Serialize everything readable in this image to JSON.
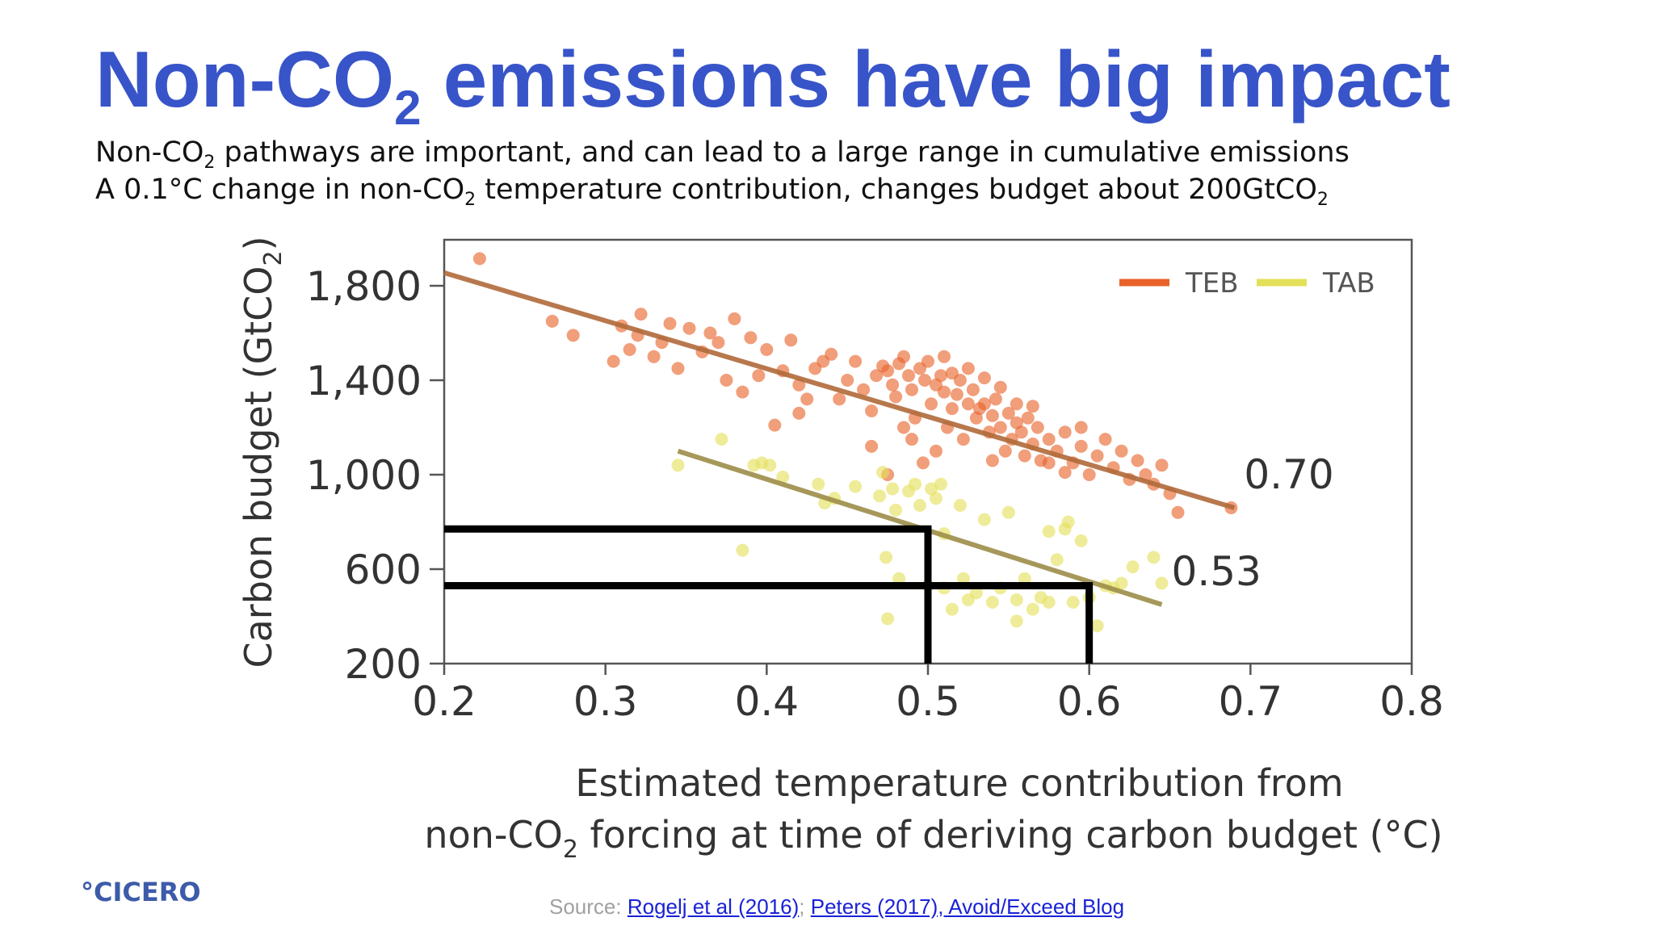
{
  "slide": {
    "title_main": "Non-CO",
    "title_sub": "2",
    "title_rest": " emissions have big impact",
    "bullet1": {
      "a": "Non-CO",
      "sub": "2",
      "b": " pathways are important, and can lead to a large range in cumulative emissions"
    },
    "bullet2": {
      "a": "A 0.1°C change in non-CO",
      "sub": "2",
      "b": " temperature contribution, changes budget about 200GtCO",
      "sub2": "2"
    },
    "logo": "°CICERO",
    "source_label": "Source: ",
    "source_link1": "Rogelj et al (2016)",
    "source_sep": "; ",
    "source_link2": "Peters (2017), Avoid/Exceed Blog"
  },
  "colors": {
    "title": "#3854c9",
    "teb": "#e8622a",
    "tab": "#e3e05a",
    "teb_line": "#b0693a",
    "tab_line": "#9c8d48"
  },
  "chart_data": {
    "type": "scatter",
    "xlabel_line1": "Estimated temperature contribution from",
    "xlabel_line2_a": "non-CO",
    "xlabel_line2_sub": "2",
    "xlabel_line2_b": " forcing at time of deriving carbon budget (°C)",
    "ylabel_a": "Carbon budget (GtCO",
    "ylabel_sub": "2",
    "ylabel_b": ")",
    "xlim": [
      0.2,
      0.8
    ],
    "ylim": [
      200,
      1950
    ],
    "xticks": [
      0.2,
      0.3,
      0.4,
      0.5,
      0.6,
      0.7,
      0.8
    ],
    "xtick_labels": [
      "0.2",
      "0.3",
      "0.4",
      "0.5",
      "0.6",
      "0.7",
      "0.8"
    ],
    "yticks": [
      200,
      600,
      1000,
      1400,
      1800
    ],
    "ytick_labels": [
      "200",
      "600",
      "1,000",
      "1,400",
      "1,800"
    ],
    "legend": [
      {
        "name": "TEB",
        "color": "#e8622a"
      },
      {
        "name": "TAB",
        "color": "#e3e05a"
      }
    ],
    "legend_position": "top-right",
    "grid": false,
    "trend_lines": [
      {
        "series": "TEB",
        "from": [
          0.2,
          1855
        ],
        "to": [
          0.69,
          860
        ],
        "label": "0.70"
      },
      {
        "series": "TAB",
        "from": [
          0.345,
          1100
        ],
        "to": [
          0.645,
          450
        ],
        "label": "0.53"
      }
    ],
    "reference_lines": [
      {
        "x": 0.5,
        "y": 770
      },
      {
        "x": 0.6,
        "y": 530
      }
    ],
    "series": [
      {
        "name": "TEB",
        "color": "#e8622a",
        "points": [
          [
            0.222,
            1915
          ],
          [
            0.267,
            1650
          ],
          [
            0.28,
            1590
          ],
          [
            0.305,
            1480
          ],
          [
            0.31,
            1630
          ],
          [
            0.315,
            1530
          ],
          [
            0.32,
            1590
          ],
          [
            0.322,
            1680
          ],
          [
            0.33,
            1500
          ],
          [
            0.335,
            1560
          ],
          [
            0.34,
            1640
          ],
          [
            0.345,
            1450
          ],
          [
            0.352,
            1620
          ],
          [
            0.36,
            1520
          ],
          [
            0.365,
            1600
          ],
          [
            0.37,
            1560
          ],
          [
            0.375,
            1400
          ],
          [
            0.38,
            1660
          ],
          [
            0.385,
            1350
          ],
          [
            0.39,
            1580
          ],
          [
            0.395,
            1420
          ],
          [
            0.4,
            1530
          ],
          [
            0.405,
            1210
          ],
          [
            0.41,
            1440
          ],
          [
            0.415,
            1570
          ],
          [
            0.42,
            1380
          ],
          [
            0.425,
            1320
          ],
          [
            0.43,
            1450
          ],
          [
            0.435,
            1480
          ],
          [
            0.44,
            1510
          ],
          [
            0.445,
            1320
          ],
          [
            0.45,
            1400
          ],
          [
            0.455,
            1480
          ],
          [
            0.46,
            1360
          ],
          [
            0.465,
            1120
          ],
          [
            0.468,
            1420
          ],
          [
            0.472,
            1460
          ],
          [
            0.475,
            1440
          ],
          [
            0.478,
            1380
          ],
          [
            0.48,
            1330
          ],
          [
            0.482,
            1470
          ],
          [
            0.485,
            1500
          ],
          [
            0.488,
            1420
          ],
          [
            0.49,
            1360
          ],
          [
            0.492,
            1240
          ],
          [
            0.495,
            1450
          ],
          [
            0.498,
            1400
          ],
          [
            0.5,
            1480
          ],
          [
            0.502,
            1300
          ],
          [
            0.505,
            1380
          ],
          [
            0.508,
            1420
          ],
          [
            0.51,
            1350
          ],
          [
            0.512,
            1200
          ],
          [
            0.515,
            1280
          ],
          [
            0.518,
            1340
          ],
          [
            0.52,
            1400
          ],
          [
            0.522,
            1150
          ],
          [
            0.525,
            1300
          ],
          [
            0.528,
            1360
          ],
          [
            0.53,
            1240
          ],
          [
            0.532,
            1280
          ],
          [
            0.535,
            1300
          ],
          [
            0.538,
            1180
          ],
          [
            0.54,
            1250
          ],
          [
            0.542,
            1320
          ],
          [
            0.545,
            1200
          ],
          [
            0.548,
            1100
          ],
          [
            0.55,
            1260
          ],
          [
            0.552,
            1150
          ],
          [
            0.555,
            1220
          ],
          [
            0.558,
            1180
          ],
          [
            0.56,
            1080
          ],
          [
            0.562,
            1240
          ],
          [
            0.565,
            1130
          ],
          [
            0.568,
            1200
          ],
          [
            0.57,
            1060
          ],
          [
            0.575,
            1150
          ],
          [
            0.58,
            1100
          ],
          [
            0.585,
            1180
          ],
          [
            0.59,
            1050
          ],
          [
            0.595,
            1120
          ],
          [
            0.6,
            1000
          ],
          [
            0.605,
            1080
          ],
          [
            0.61,
            1150
          ],
          [
            0.615,
            1030
          ],
          [
            0.62,
            1100
          ],
          [
            0.625,
            980
          ],
          [
            0.63,
            1060
          ],
          [
            0.635,
            1000
          ],
          [
            0.64,
            960
          ],
          [
            0.645,
            1040
          ],
          [
            0.65,
            920
          ],
          [
            0.655,
            840
          ],
          [
            0.688,
            860
          ],
          [
            0.42,
            1260
          ],
          [
            0.475,
            1000
          ],
          [
            0.485,
            1200
          ],
          [
            0.49,
            1150
          ],
          [
            0.497,
            1050
          ],
          [
            0.505,
            1100
          ],
          [
            0.51,
            1500
          ],
          [
            0.515,
            1430
          ],
          [
            0.525,
            1450
          ],
          [
            0.535,
            1410
          ],
          [
            0.54,
            1060
          ],
          [
            0.545,
            1370
          ],
          [
            0.555,
            1300
          ],
          [
            0.565,
            1290
          ],
          [
            0.575,
            1050
          ],
          [
            0.585,
            1010
          ],
          [
            0.595,
            1200
          ],
          [
            0.465,
            1270
          ]
        ]
      },
      {
        "name": "TAB",
        "color": "#e3e05a",
        "points": [
          [
            0.345,
            1040
          ],
          [
            0.372,
            1150
          ],
          [
            0.385,
            680
          ],
          [
            0.392,
            1040
          ],
          [
            0.397,
            1050
          ],
          [
            0.402,
            1040
          ],
          [
            0.41,
            990
          ],
          [
            0.432,
            960
          ],
          [
            0.436,
            880
          ],
          [
            0.442,
            900
          ],
          [
            0.455,
            950
          ],
          [
            0.47,
            910
          ],
          [
            0.472,
            1010
          ],
          [
            0.474,
            650
          ],
          [
            0.475,
            390
          ],
          [
            0.478,
            940
          ],
          [
            0.48,
            850
          ],
          [
            0.482,
            560
          ],
          [
            0.488,
            930
          ],
          [
            0.492,
            960
          ],
          [
            0.495,
            870
          ],
          [
            0.5,
            530
          ],
          [
            0.502,
            940
          ],
          [
            0.505,
            900
          ],
          [
            0.508,
            960
          ],
          [
            0.51,
            520
          ],
          [
            0.515,
            430
          ],
          [
            0.52,
            870
          ],
          [
            0.522,
            560
          ],
          [
            0.525,
            470
          ],
          [
            0.53,
            500
          ],
          [
            0.535,
            810
          ],
          [
            0.54,
            460
          ],
          [
            0.545,
            520
          ],
          [
            0.55,
            840
          ],
          [
            0.555,
            470
          ],
          [
            0.56,
            560
          ],
          [
            0.565,
            430
          ],
          [
            0.57,
            480
          ],
          [
            0.575,
            460
          ],
          [
            0.58,
            640
          ],
          [
            0.585,
            770
          ],
          [
            0.59,
            460
          ],
          [
            0.595,
            720
          ],
          [
            0.6,
            480
          ],
          [
            0.605,
            360
          ],
          [
            0.61,
            530
          ],
          [
            0.62,
            540
          ],
          [
            0.627,
            610
          ],
          [
            0.64,
            650
          ],
          [
            0.645,
            540
          ],
          [
            0.555,
            380
          ],
          [
            0.575,
            760
          ],
          [
            0.615,
            520
          ],
          [
            0.587,
            800
          ],
          [
            0.51,
            750
          ]
        ]
      }
    ]
  }
}
